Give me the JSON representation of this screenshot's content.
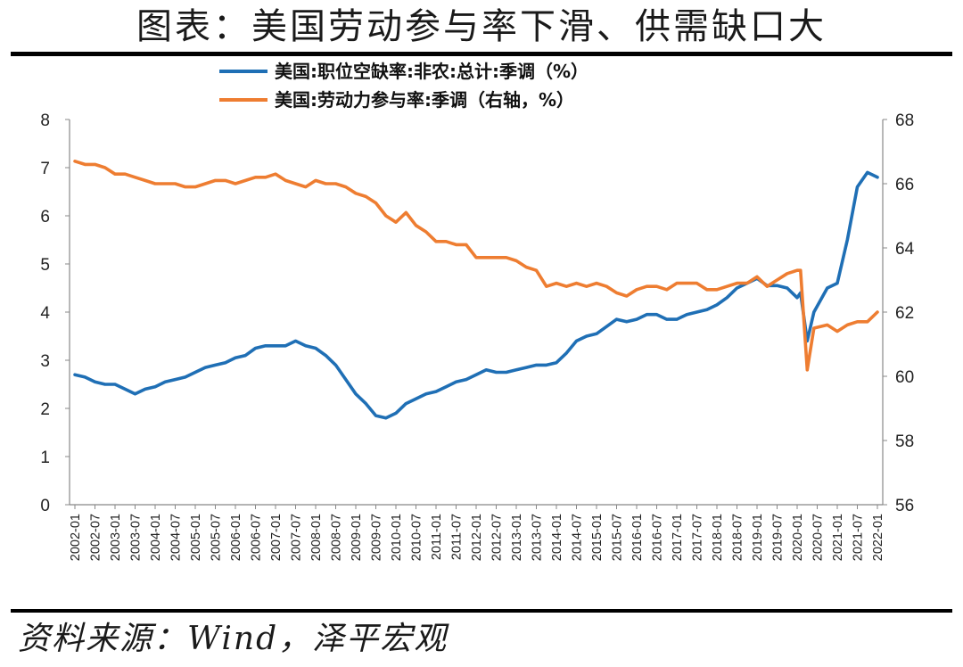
{
  "title": "图表：美国劳动参与率下滑、供需缺口大",
  "source": "资料来源：Wind，泽平宏观",
  "chart_data": {
    "type": "line",
    "title": "图表：美国劳动参与率下滑、供需缺口大",
    "x_tick_labels": [
      "2002-01",
      "2002-07",
      "2003-01",
      "2003-07",
      "2004-01",
      "2004-07",
      "2005-01",
      "2005-07",
      "2006-01",
      "2006-07",
      "2007-01",
      "2007-07",
      "2008-01",
      "2008-07",
      "2009-01",
      "2009-07",
      "2010-01",
      "2010-07",
      "2011-01",
      "2011-07",
      "2012-01",
      "2012-07",
      "2013-01",
      "2013-07",
      "2014-01",
      "2014-07",
      "2015-01",
      "2015-07",
      "2016-01",
      "2016-07",
      "2017-01",
      "2017-07",
      "2018-01",
      "2018-07",
      "2019-01",
      "2019-07",
      "2020-01",
      "2020-07",
      "2021-01",
      "2021-07",
      "2022-01"
    ],
    "left_axis": {
      "ylim": [
        0,
        8
      ],
      "ticks": [
        "0",
        "1",
        "2",
        "3",
        "4",
        "5",
        "6",
        "7",
        "8"
      ]
    },
    "right_axis": {
      "ylim": [
        56,
        68
      ],
      "ticks": [
        "56",
        "58",
        "60",
        "62",
        "64",
        "66",
        "68"
      ]
    },
    "legend_position": "top-center",
    "grid": false,
    "series": [
      {
        "name": "美国:职位空缺率:非农:总计:季调（%）",
        "axis": "left",
        "color": "#1f6fb5",
        "points": [
          [
            "2002-01",
            2.7
          ],
          [
            "2002-04",
            2.65
          ],
          [
            "2002-07",
            2.55
          ],
          [
            "2002-10",
            2.5
          ],
          [
            "2003-01",
            2.5
          ],
          [
            "2003-04",
            2.4
          ],
          [
            "2003-07",
            2.3
          ],
          [
            "2003-10",
            2.4
          ],
          [
            "2004-01",
            2.45
          ],
          [
            "2004-04",
            2.55
          ],
          [
            "2004-07",
            2.6
          ],
          [
            "2004-10",
            2.65
          ],
          [
            "2005-01",
            2.75
          ],
          [
            "2005-04",
            2.85
          ],
          [
            "2005-07",
            2.9
          ],
          [
            "2005-10",
            2.95
          ],
          [
            "2006-01",
            3.05
          ],
          [
            "2006-04",
            3.1
          ],
          [
            "2006-07",
            3.25
          ],
          [
            "2006-10",
            3.3
          ],
          [
            "2007-01",
            3.3
          ],
          [
            "2007-04",
            3.3
          ],
          [
            "2007-07",
            3.4
          ],
          [
            "2007-10",
            3.3
          ],
          [
            "2008-01",
            3.25
          ],
          [
            "2008-04",
            3.1
          ],
          [
            "2008-07",
            2.9
          ],
          [
            "2008-10",
            2.6
          ],
          [
            "2009-01",
            2.3
          ],
          [
            "2009-04",
            2.1
          ],
          [
            "2009-07",
            1.85
          ],
          [
            "2009-10",
            1.8
          ],
          [
            "2010-01",
            1.9
          ],
          [
            "2010-04",
            2.1
          ],
          [
            "2010-07",
            2.2
          ],
          [
            "2010-10",
            2.3
          ],
          [
            "2011-01",
            2.35
          ],
          [
            "2011-04",
            2.45
          ],
          [
            "2011-07",
            2.55
          ],
          [
            "2011-10",
            2.6
          ],
          [
            "2012-01",
            2.7
          ],
          [
            "2012-04",
            2.8
          ],
          [
            "2012-07",
            2.75
          ],
          [
            "2012-10",
            2.75
          ],
          [
            "2013-01",
            2.8
          ],
          [
            "2013-04",
            2.85
          ],
          [
            "2013-07",
            2.9
          ],
          [
            "2013-10",
            2.9
          ],
          [
            "2014-01",
            2.95
          ],
          [
            "2014-04",
            3.15
          ],
          [
            "2014-07",
            3.4
          ],
          [
            "2014-10",
            3.5
          ],
          [
            "2015-01",
            3.55
          ],
          [
            "2015-04",
            3.7
          ],
          [
            "2015-07",
            3.85
          ],
          [
            "2015-10",
            3.8
          ],
          [
            "2016-01",
            3.85
          ],
          [
            "2016-04",
            3.95
          ],
          [
            "2016-07",
            3.95
          ],
          [
            "2016-10",
            3.85
          ],
          [
            "2017-01",
            3.85
          ],
          [
            "2017-04",
            3.95
          ],
          [
            "2017-07",
            4.0
          ],
          [
            "2017-10",
            4.05
          ],
          [
            "2018-01",
            4.15
          ],
          [
            "2018-04",
            4.3
          ],
          [
            "2018-07",
            4.5
          ],
          [
            "2018-10",
            4.6
          ],
          [
            "2019-01",
            4.7
          ],
          [
            "2019-04",
            4.55
          ],
          [
            "2019-07",
            4.55
          ],
          [
            "2019-10",
            4.5
          ],
          [
            "2020-01",
            4.3
          ],
          [
            "2020-02",
            4.4
          ],
          [
            "2020-04",
            3.4
          ],
          [
            "2020-06",
            4.0
          ],
          [
            "2020-10",
            4.5
          ],
          [
            "2021-01",
            4.6
          ],
          [
            "2021-04",
            5.5
          ],
          [
            "2021-07",
            6.6
          ],
          [
            "2021-10",
            6.9
          ],
          [
            "2022-01",
            6.8
          ]
        ]
      },
      {
        "name": "美国:劳动力参与率:季调（右轴，%）",
        "axis": "right",
        "color": "#ee7d31",
        "points": [
          [
            "2002-01",
            66.7
          ],
          [
            "2002-04",
            66.6
          ],
          [
            "2002-07",
            66.6
          ],
          [
            "2002-10",
            66.5
          ],
          [
            "2003-01",
            66.3
          ],
          [
            "2003-04",
            66.3
          ],
          [
            "2003-07",
            66.2
          ],
          [
            "2003-10",
            66.1
          ],
          [
            "2004-01",
            66.0
          ],
          [
            "2004-04",
            66.0
          ],
          [
            "2004-07",
            66.0
          ],
          [
            "2004-10",
            65.9
          ],
          [
            "2005-01",
            65.9
          ],
          [
            "2005-04",
            66.0
          ],
          [
            "2005-07",
            66.1
          ],
          [
            "2005-10",
            66.1
          ],
          [
            "2006-01",
            66.0
          ],
          [
            "2006-04",
            66.1
          ],
          [
            "2006-07",
            66.2
          ],
          [
            "2006-10",
            66.2
          ],
          [
            "2007-01",
            66.3
          ],
          [
            "2007-04",
            66.1
          ],
          [
            "2007-07",
            66.0
          ],
          [
            "2007-10",
            65.9
          ],
          [
            "2008-01",
            66.1
          ],
          [
            "2008-04",
            66.0
          ],
          [
            "2008-07",
            66.0
          ],
          [
            "2008-10",
            65.9
          ],
          [
            "2009-01",
            65.7
          ],
          [
            "2009-04",
            65.6
          ],
          [
            "2009-07",
            65.4
          ],
          [
            "2009-10",
            65.0
          ],
          [
            "2010-01",
            64.8
          ],
          [
            "2010-04",
            65.1
          ],
          [
            "2010-07",
            64.7
          ],
          [
            "2010-10",
            64.5
          ],
          [
            "2011-01",
            64.2
          ],
          [
            "2011-04",
            64.2
          ],
          [
            "2011-07",
            64.1
          ],
          [
            "2011-10",
            64.1
          ],
          [
            "2012-01",
            63.7
          ],
          [
            "2012-04",
            63.7
          ],
          [
            "2012-07",
            63.7
          ],
          [
            "2012-10",
            63.7
          ],
          [
            "2013-01",
            63.6
          ],
          [
            "2013-04",
            63.4
          ],
          [
            "2013-07",
            63.3
          ],
          [
            "2013-10",
            62.8
          ],
          [
            "2014-01",
            62.9
          ],
          [
            "2014-04",
            62.8
          ],
          [
            "2014-07",
            62.9
          ],
          [
            "2014-10",
            62.8
          ],
          [
            "2015-01",
            62.9
          ],
          [
            "2015-04",
            62.8
          ],
          [
            "2015-07",
            62.6
          ],
          [
            "2015-10",
            62.5
          ],
          [
            "2016-01",
            62.7
          ],
          [
            "2016-04",
            62.8
          ],
          [
            "2016-07",
            62.8
          ],
          [
            "2016-10",
            62.7
          ],
          [
            "2017-01",
            62.9
          ],
          [
            "2017-04",
            62.9
          ],
          [
            "2017-07",
            62.9
          ],
          [
            "2017-10",
            62.7
          ],
          [
            "2018-01",
            62.7
          ],
          [
            "2018-04",
            62.8
          ],
          [
            "2018-07",
            62.9
          ],
          [
            "2018-10",
            62.9
          ],
          [
            "2019-01",
            63.1
          ],
          [
            "2019-04",
            62.8
          ],
          [
            "2019-07",
            63.0
          ],
          [
            "2019-10",
            63.2
          ],
          [
            "2020-01",
            63.3
          ],
          [
            "2020-02",
            63.3
          ],
          [
            "2020-04",
            60.2
          ],
          [
            "2020-06",
            61.5
          ],
          [
            "2020-10",
            61.6
          ],
          [
            "2021-01",
            61.4
          ],
          [
            "2021-04",
            61.6
          ],
          [
            "2021-07",
            61.7
          ],
          [
            "2021-10",
            61.7
          ],
          [
            "2022-01",
            62.0
          ]
        ]
      }
    ]
  }
}
